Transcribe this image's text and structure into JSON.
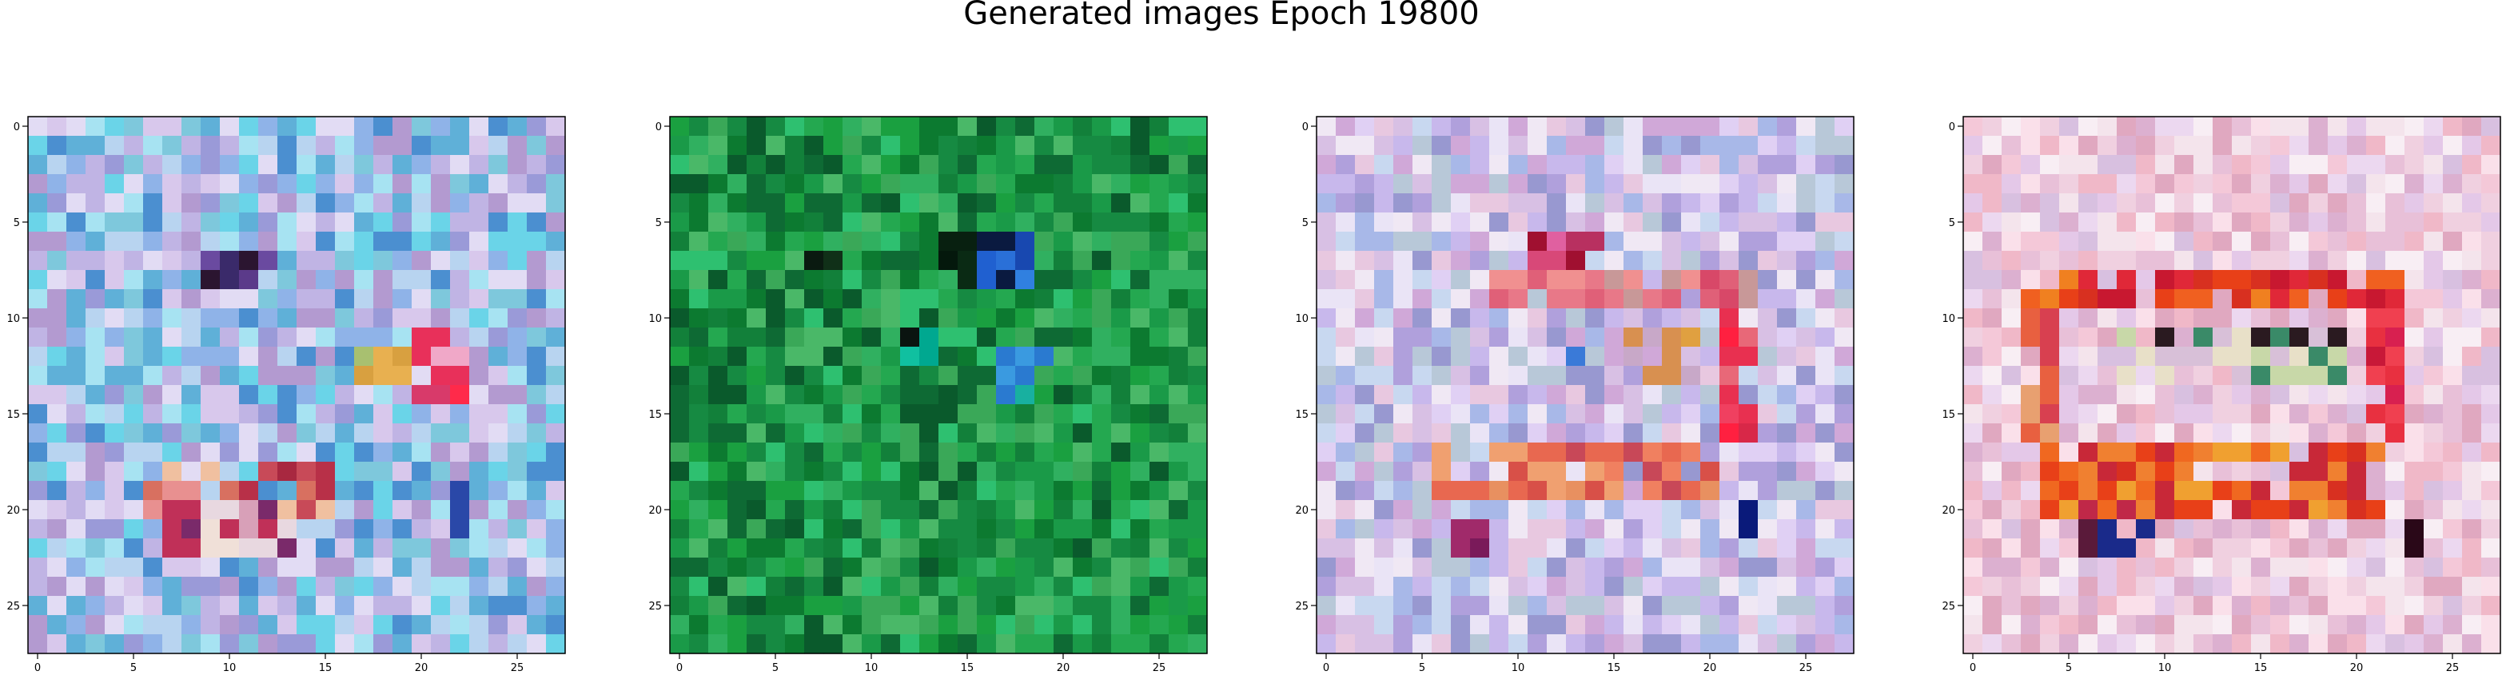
{
  "chart_data": {
    "type": "heatmap",
    "title": "Generated images Epoch 19800",
    "grid_size": [
      28,
      28
    ],
    "axes": {
      "xlim": [
        -0.5,
        27.5
      ],
      "ylim": [
        27.5,
        -0.5
      ],
      "xticks": [
        0,
        5,
        10,
        15,
        20,
        25
      ],
      "yticks": [
        0,
        5,
        10,
        15,
        20,
        25
      ],
      "grid": false
    },
    "panels": [
      {
        "id": "panel-1",
        "palette": [
          "#8fb3e8",
          "#b8d4f0",
          "#d8c8ec",
          "#7ec8dc",
          "#a7e3f2",
          "#5fb0d8",
          "#9a9ad8",
          "#c0b4e4",
          "#e2dcf4",
          "#6ad4e8",
          "#4b8fd0",
          "#b39ad0"
        ],
        "features": [
          {
            "rows": [
              7,
              8
            ],
            "cols": [
              9,
              12
            ],
            "colors": [
              "#5b3a8a",
              "#2b1530",
              "#6a4aa0",
              "#3a2a6a"
            ]
          },
          {
            "rows": [
              11,
              14
            ],
            "cols": [
              20,
              22
            ],
            "colors": [
              "#e8305a",
              "#f04878",
              "#d83a6a",
              "#ff2a4a",
              "#f0a8c8"
            ]
          },
          {
            "rows": [
              12,
              13
            ],
            "cols": [
              17,
              19
            ],
            "colors": [
              "#d8a040",
              "#e8b050",
              "#c89048",
              "#a8c070"
            ]
          },
          {
            "rows": [
              18,
              20
            ],
            "cols": [
              6,
              15
            ],
            "colors": [
              "#c84a58",
              "#b83048",
              "#d87060",
              "#e89090",
              "#a82840",
              "#f0c0a0"
            ]
          },
          {
            "rows": [
              20,
              22
            ],
            "cols": [
              7,
              13
            ],
            "colors": [
              "#7a2a6a",
              "#c03058",
              "#e8d8e0",
              "#f0e0d8",
              "#d8a0b8"
            ]
          },
          {
            "rows": [
              19,
              21
            ],
            "cols": [
              22,
              22
            ],
            "colors": [
              "#1a3a9a",
              "#2a48a8"
            ]
          },
          {
            "rows": [
              11,
              11
            ],
            "cols": [
              20,
              21
            ],
            "colors": [
              "#e840c8",
              "#c830b0"
            ]
          }
        ]
      },
      {
        "id": "panel-2",
        "palette": [
          "#1a9a48",
          "#12803a",
          "#24a850",
          "#0e6a34",
          "#30b060",
          "#168a42",
          "#0a5a2c",
          "#2ec070",
          "#4ab868",
          "#1aa040",
          "#0c7a30",
          "#3aa858"
        ],
        "features": [
          {
            "rows": [
              6,
              8
            ],
            "cols": [
              16,
              18
            ],
            "colors": [
              "#2060d0",
              "#3080e0",
              "#1848b0",
              "#0a1a40",
              "#2a70d8"
            ]
          },
          {
            "rows": [
              7,
              7
            ],
            "cols": [
              7,
              8
            ],
            "colors": [
              "#0a1a10",
              "#103018"
            ]
          },
          {
            "rows": [
              11,
              12
            ],
            "cols": [
              12,
              13
            ],
            "colors": [
              "#0a1410",
              "#00a890",
              "#10c0a0"
            ]
          },
          {
            "rows": [
              12,
              14
            ],
            "cols": [
              17,
              19
            ],
            "colors": [
              "#2a7ad0",
              "#3a9ae0",
              "#18b0a0"
            ]
          },
          {
            "rows": [
              6,
              8
            ],
            "cols": [
              14,
              15
            ],
            "colors": [
              "#082010",
              "#0a2a14",
              "#04180c"
            ]
          }
        ]
      },
      {
        "id": "panel-3",
        "palette": [
          "#c8b8ec",
          "#e0d0f4",
          "#b0a0dc",
          "#d8c0e4",
          "#eae4f6",
          "#a8b8e8",
          "#c8d8f0",
          "#e8c8e0",
          "#b8c8d8",
          "#d0a8d8",
          "#f0e8f4",
          "#9898d0"
        ],
        "features": [
          {
            "rows": [
              6,
              8
            ],
            "cols": [
              11,
              14
            ],
            "colors": [
              "#c02040",
              "#d84878",
              "#b83060",
              "#e060a0",
              "#a01030"
            ]
          },
          {
            "rows": [
              8,
              9
            ],
            "cols": [
              9,
              22
            ],
            "colors": [
              "#e06078",
              "#f09090",
              "#d84868",
              "#c89898",
              "#e87888"
            ]
          },
          {
            "rows": [
              10,
              16
            ],
            "cols": [
              21,
              22
            ],
            "colors": [
              "#e83050",
              "#ff2040",
              "#d82848",
              "#f04060",
              "#e86878"
            ]
          },
          {
            "rows": [
              17,
              19
            ],
            "cols": [
              6,
              20
            ],
            "colors": [
              "#e86850",
              "#f08060",
              "#d85048",
              "#e89060",
              "#c84858",
              "#f0a070"
            ]
          },
          {
            "rows": [
              19,
              21
            ],
            "cols": [
              22,
              22
            ],
            "colors": [
              "#0a1a7a",
              "#1a2a8a"
            ]
          },
          {
            "rows": [
              11,
              13
            ],
            "cols": [
              16,
              19
            ],
            "colors": [
              "#e0a040",
              "#d89050",
              "#c8a8c8"
            ]
          },
          {
            "rows": [
              12,
              12
            ],
            "cols": [
              12,
              13
            ],
            "colors": [
              "#3a7ad8",
              "#2a6ac8"
            ]
          },
          {
            "rows": [
              21,
              22
            ],
            "cols": [
              7,
              8
            ],
            "colors": [
              "#7a1a5a",
              "#a02a6a"
            ]
          }
        ]
      },
      {
        "id": "panel-4",
        "palette": [
          "#f0d0e0",
          "#e8c0d8",
          "#f4e4ec",
          "#dcb0d0",
          "#f8eef4",
          "#e4c8e8",
          "#f0b8c8",
          "#d8c0e0",
          "#fae0ea",
          "#e0a8c0",
          "#ecd8f0",
          "#f4c8d8"
        ],
        "features": [
          {
            "rows": [
              8,
              9
            ],
            "cols": [
              3,
              22
            ],
            "colors": [
              "#e84018",
              "#f06020",
              "#d83020",
              "#f08020",
              "#e02838",
              "#c81830"
            ]
          },
          {
            "rows": [
              10,
              17
            ],
            "cols": [
              3,
              4
            ],
            "colors": [
              "#e86040",
              "#d84050",
              "#f07050",
              "#e8a070"
            ]
          },
          {
            "rows": [
              10,
              17
            ],
            "cols": [
              21,
              22
            ],
            "colors": [
              "#e83040",
              "#d82050",
              "#f04050",
              "#c81838"
            ]
          },
          {
            "rows": [
              17,
              20
            ],
            "cols": [
              4,
              21
            ],
            "colors": [
              "#e84018",
              "#f06820",
              "#d83020",
              "#f08030",
              "#c82838",
              "#f0a030"
            ]
          },
          {
            "rows": [
              11,
              13
            ],
            "cols": [
              6,
              19
            ],
            "colors": [
              "#c8d8a8",
              "#2a1a20",
              "#e8e0c8",
              "#3a8a68",
              "#d8c0d8"
            ]
          },
          {
            "rows": [
              20,
              22
            ],
            "cols": [
              6,
              9
            ],
            "colors": [
              "#2a3aa8",
              "#5a1a3a",
              "#c02848",
              "#1a2a8a"
            ]
          },
          {
            "rows": [
              21,
              22
            ],
            "cols": [
              23,
              23
            ],
            "colors": [
              "#2a0818",
              "#3a1020"
            ]
          }
        ]
      }
    ]
  }
}
